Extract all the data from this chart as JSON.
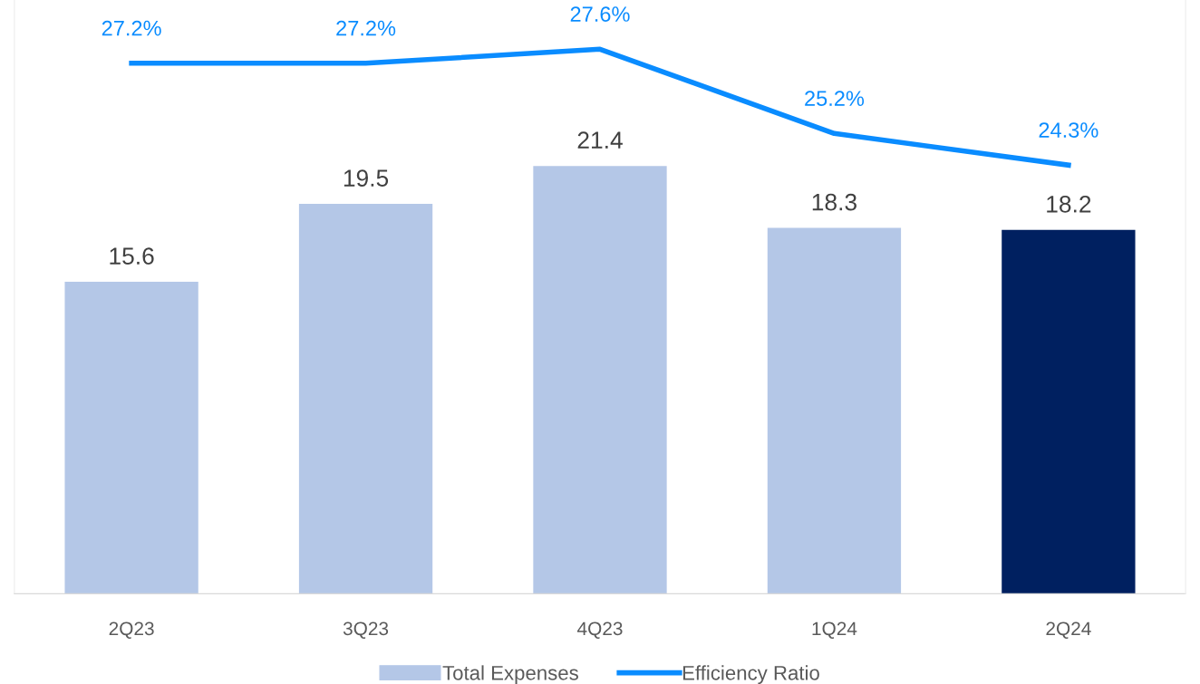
{
  "chart_data": {
    "type": "bar",
    "categories": [
      "2Q23",
      "3Q23",
      "4Q23",
      "1Q24",
      "2Q24"
    ],
    "series": [
      {
        "name": "Total Expenses",
        "color": "#b4c7e7",
        "colors": [
          "#b4c7e7",
          "#b4c7e7",
          "#b4c7e7",
          "#b4c7e7",
          "#002060"
        ],
        "values": [
          15.6,
          19.5,
          21.4,
          18.3,
          18.2
        ],
        "value_labels": [
          "15.6",
          "19.5",
          "21.4",
          "18.3",
          "18.2"
        ]
      },
      {
        "name": "Efficiency Ratio",
        "type": "line",
        "axis": "y2",
        "color": "#0a8cff",
        "values": [
          27.2,
          27.2,
          27.6,
          25.2,
          24.3
        ],
        "value_labels": [
          "27.2%",
          "27.2%",
          "27.6%",
          "25.2%",
          "24.3%"
        ]
      }
    ],
    "ylim": [
      0,
      29.7
    ],
    "y2lim": [
      12.1,
      29.0
    ],
    "tick_labels": "x",
    "grid": false,
    "legend": "bottom",
    "marker": "none",
    "line_style": "solid"
  }
}
